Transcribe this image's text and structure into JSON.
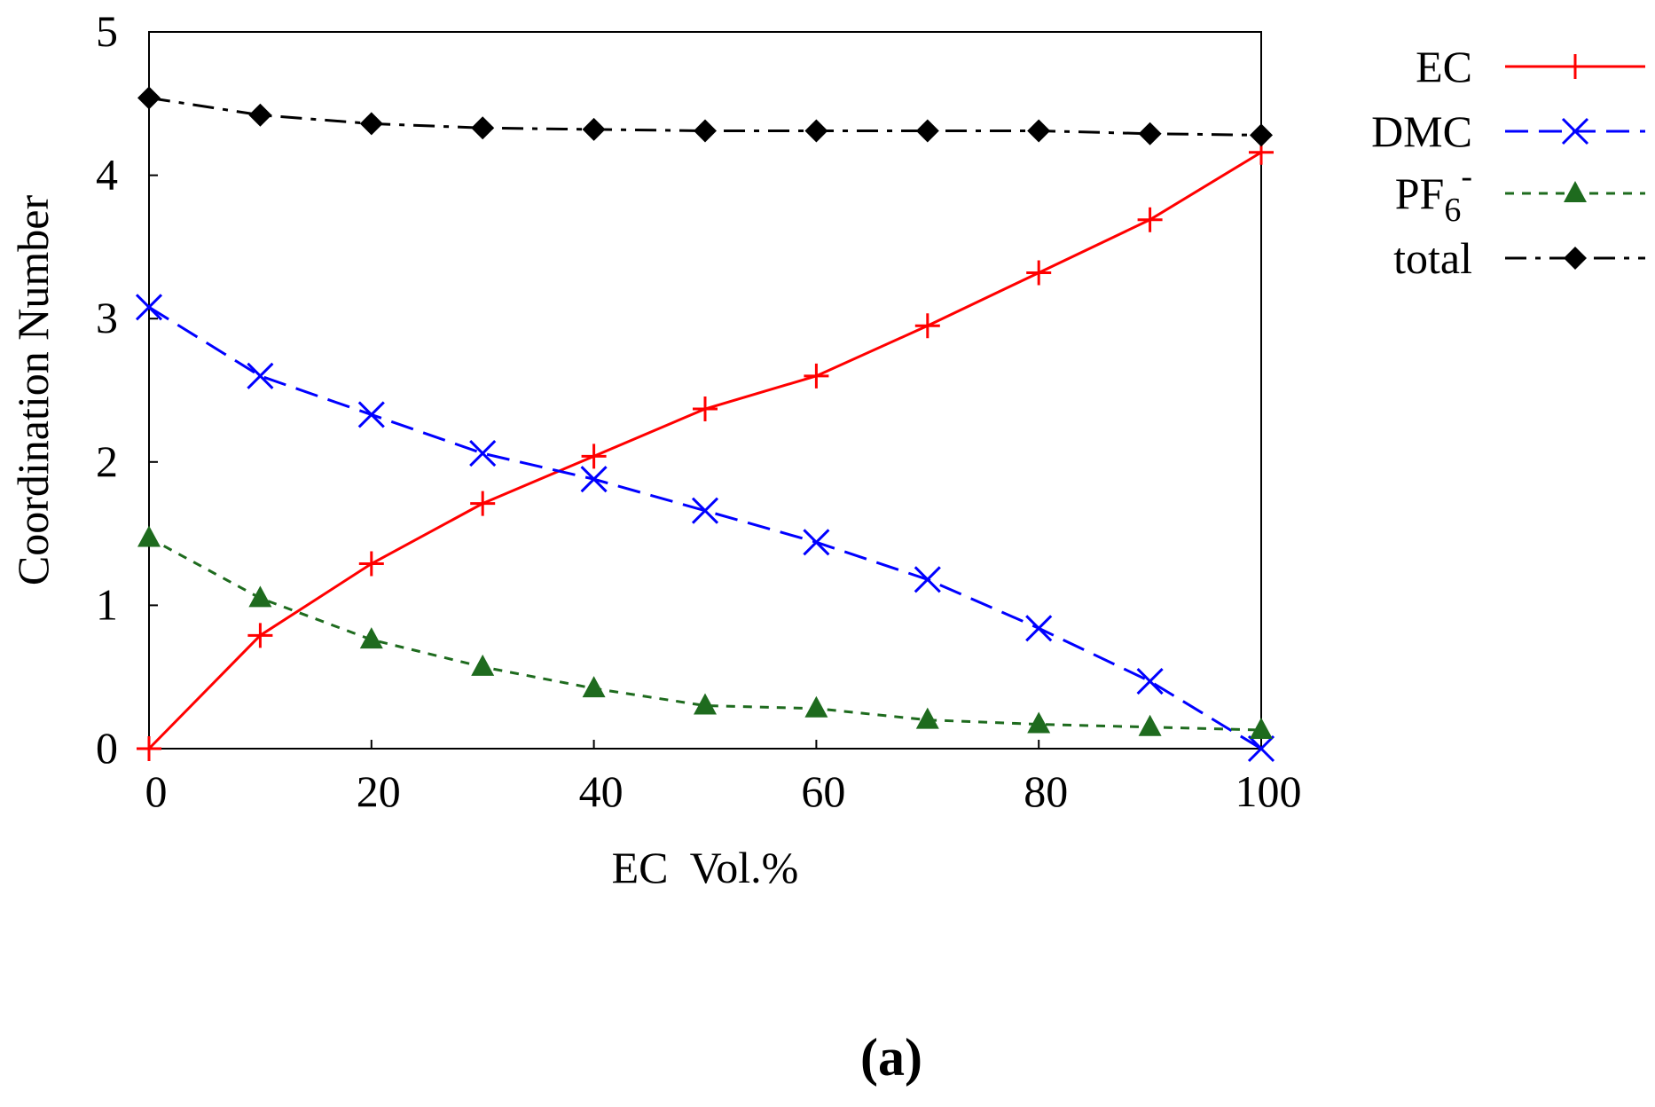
{
  "chart_data": {
    "type": "line",
    "xlabel": "EC  Vol.%",
    "ylabel": "Coordination Number",
    "xlim": [
      0,
      100
    ],
    "ylim": [
      0,
      5
    ],
    "xticks": [
      0,
      20,
      40,
      60,
      80,
      100
    ],
    "yticks": [
      0,
      1,
      2,
      3,
      4,
      5
    ],
    "grid": false,
    "legend_position": "right",
    "panel_label": "(a)",
    "x": [
      0,
      10,
      20,
      30,
      40,
      50,
      60,
      70,
      80,
      90,
      100
    ],
    "series": [
      {
        "name": "EC",
        "color": "#ff0000",
        "marker": "plus",
        "dash": "solid",
        "values": [
          0,
          0.79,
          1.29,
          1.71,
          2.04,
          2.37,
          2.6,
          2.95,
          3.32,
          3.69,
          4.16
        ]
      },
      {
        "name": "DMC",
        "color": "#0000ff",
        "marker": "x",
        "dash": "dashed",
        "values": [
          3.08,
          2.6,
          2.33,
          2.06,
          1.88,
          1.66,
          1.44,
          1.18,
          0.84,
          0.47,
          0
        ]
      },
      {
        "name": "PF6-",
        "label_base": "PF",
        "label_sub": "6",
        "label_sup": "-",
        "color": "#1e6b1e",
        "marker": "triangle",
        "dash": "dotted",
        "values": [
          1.47,
          1.05,
          0.76,
          0.57,
          0.42,
          0.3,
          0.28,
          0.2,
          0.17,
          0.15,
          0.13
        ]
      },
      {
        "name": "total",
        "color": "#000000",
        "marker": "diamond",
        "dash": "dashdot",
        "values": [
          4.54,
          4.42,
          4.36,
          4.33,
          4.32,
          4.31,
          4.31,
          4.31,
          4.31,
          4.29,
          4.28
        ]
      }
    ]
  }
}
